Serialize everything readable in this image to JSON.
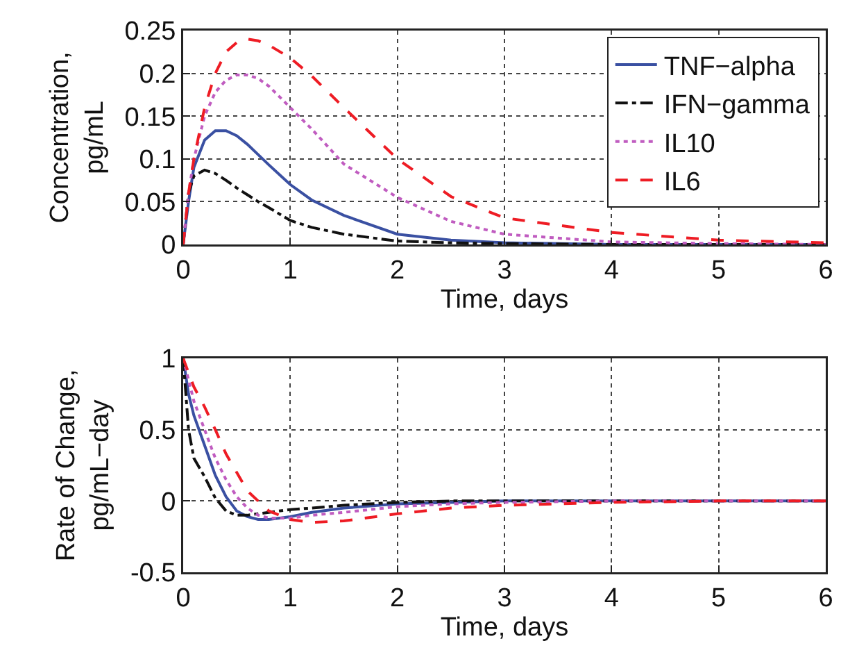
{
  "chart_data": [
    {
      "type": "line",
      "xlabel": "Time, days",
      "ylabel": "Concentration, pg/mL",
      "x": [
        0,
        0.05,
        0.1,
        0.2,
        0.3,
        0.4,
        0.5,
        0.6,
        0.7,
        0.8,
        1,
        1.2,
        1.5,
        2,
        2.5,
        3,
        4,
        5,
        6
      ],
      "xlim": [
        0,
        6
      ],
      "xticks": [
        0,
        1,
        2,
        3,
        4,
        5,
        6
      ],
      "ylim": [
        0,
        0.25
      ],
      "yticks": [
        0,
        0.05,
        0.1,
        0.15,
        0.2,
        0.25
      ],
      "grid": true,
      "legend": "top right",
      "marker": "none",
      "series": [
        {
          "name": "TNF−alpha",
          "color": "#3a50a2",
          "line_style": "solid",
          "values": [
            0,
            0.05,
            0.09,
            0.122,
            0.133,
            0.133,
            0.127,
            0.117,
            0.105,
            0.093,
            0.07,
            0.052,
            0.034,
            0.012,
            0.005,
            0.002,
            0,
            0,
            0
          ]
        },
        {
          "name": "IFN−gamma",
          "color": "#111111",
          "line_style": "dashdot",
          "values": [
            0,
            0.06,
            0.08,
            0.087,
            0.083,
            0.075,
            0.066,
            0.058,
            0.05,
            0.043,
            0.028,
            0.02,
            0.012,
            0.004,
            0.002,
            0.001,
            0,
            0,
            0
          ]
        },
        {
          "name": "IL10",
          "color": "#c05cc0",
          "line_style": "dotted",
          "values": [
            0,
            0.06,
            0.1,
            0.15,
            0.178,
            0.192,
            0.198,
            0.198,
            0.194,
            0.185,
            0.16,
            0.135,
            0.094,
            0.055,
            0.027,
            0.012,
            0.003,
            0.001,
            0
          ]
        },
        {
          "name": "IL6",
          "color": "#ee1c24",
          "line_style": "dashed",
          "values": [
            0,
            0.06,
            0.1,
            0.16,
            0.2,
            0.225,
            0.236,
            0.24,
            0.238,
            0.233,
            0.218,
            0.197,
            0.16,
            0.1,
            0.056,
            0.031,
            0.014,
            0.005,
            0.002
          ]
        }
      ]
    },
    {
      "type": "line",
      "xlabel": "Time, days",
      "ylabel": "Rate of Change, pg/mL−day",
      "x": [
        0,
        0.05,
        0.1,
        0.2,
        0.3,
        0.4,
        0.5,
        0.6,
        0.7,
        0.8,
        1,
        1.2,
        1.5,
        2,
        2.5,
        3,
        4,
        5,
        6
      ],
      "xlim": [
        0,
        6
      ],
      "xticks": [
        0,
        1,
        2,
        3,
        4,
        5,
        6
      ],
      "ylim": [
        -0.5,
        1
      ],
      "yticks": [
        -0.5,
        0,
        0.5,
        1
      ],
      "grid": true,
      "legend": false,
      "marker": "none",
      "series": [
        {
          "color": "#3a50a2",
          "line_style": "solid",
          "values": [
            1,
            0.75,
            0.6,
            0.39,
            0.18,
            0.03,
            -0.07,
            -0.11,
            -0.13,
            -0.13,
            -0.11,
            -0.08,
            -0.05,
            -0.02,
            -0.01,
            0,
            0,
            0,
            0
          ]
        },
        {
          "color": "#111111",
          "line_style": "dashdot",
          "values": [
            1,
            0.5,
            0.3,
            0.17,
            0.02,
            -0.07,
            -0.1,
            -0.1,
            -0.09,
            -0.08,
            -0.06,
            -0.05,
            -0.03,
            -0.01,
            0,
            0,
            0,
            0,
            0
          ]
        },
        {
          "color": "#c05cc0",
          "line_style": "dotted",
          "values": [
            1,
            0.85,
            0.7,
            0.5,
            0.3,
            0.15,
            0.03,
            -0.05,
            -0.1,
            -0.12,
            -0.12,
            -0.1,
            -0.08,
            -0.04,
            -0.02,
            -0.01,
            0,
            0,
            0
          ]
        },
        {
          "color": "#ee1c24",
          "line_style": "dashed",
          "values": [
            1,
            0.9,
            0.8,
            0.66,
            0.5,
            0.33,
            0.2,
            0.07,
            0,
            -0.07,
            -0.13,
            -0.15,
            -0.14,
            -0.09,
            -0.05,
            -0.03,
            -0.01,
            0,
            0
          ]
        }
      ]
    }
  ]
}
